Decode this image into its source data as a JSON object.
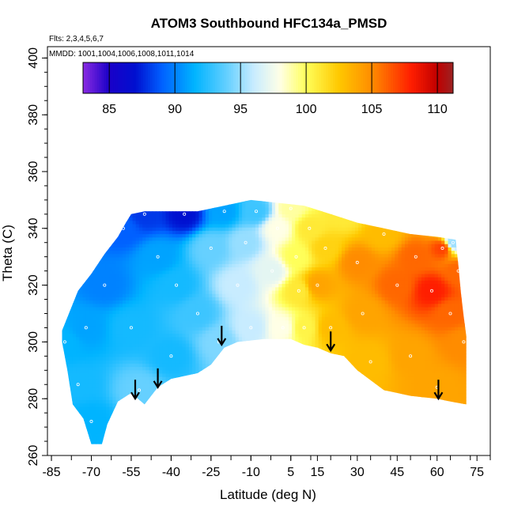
{
  "chart_data": {
    "type": "heatmap",
    "title": "ATOM3 Southbound HFC134a_PMSD",
    "notes": [
      "Flts: 2,3,4,5,6,7",
      "MMDD: 1001,1004,1006,1008,1011,1014"
    ],
    "xlabel": "Latitude (deg N)",
    "ylabel": "Theta (C)",
    "xlim": [
      -86.5,
      80
    ],
    "ylim": [
      260,
      404
    ],
    "x_ticks": [
      -85,
      -70,
      -55,
      -40,
      -25,
      -10,
      5,
      15,
      30,
      45,
      60,
      75
    ],
    "x_tick_labels": [
      "-85",
      "-70",
      "-55",
      "-40",
      "-25",
      "-10",
      "5",
      "15",
      "30",
      "45",
      "60",
      "75"
    ],
    "y_ticks": [
      260,
      280,
      300,
      320,
      340,
      360,
      380,
      400
    ],
    "y_tick_labels": [
      "260",
      "280",
      "300",
      "320",
      "340",
      "360",
      "380",
      "400"
    ],
    "colorbar": {
      "range": [
        83,
        111.2
      ],
      "ticks": [
        85,
        90,
        95,
        100,
        105,
        110
      ],
      "tick_labels": [
        "85",
        "90",
        "95",
        "100",
        "105",
        "110"
      ],
      "stops": [
        {
          "value": 83,
          "color": "#8a2be2"
        },
        {
          "value": 85,
          "color": "#1a00c8"
        },
        {
          "value": 87,
          "color": "#0010d0"
        },
        {
          "value": 89,
          "color": "#0060ff"
        },
        {
          "value": 91.5,
          "color": "#00b4ff"
        },
        {
          "value": 94,
          "color": "#66d0ff"
        },
        {
          "value": 96,
          "color": "#c8ecff"
        },
        {
          "value": 98,
          "color": "#ffffe6"
        },
        {
          "value": 100,
          "color": "#ffff5a"
        },
        {
          "value": 102.5,
          "color": "#ffc800"
        },
        {
          "value": 105,
          "color": "#ff8c00"
        },
        {
          "value": 108,
          "color": "#ff1e00"
        },
        {
          "value": 110,
          "color": "#c00000"
        },
        {
          "value": 111.2,
          "color": "#9b2222"
        }
      ]
    },
    "field": {
      "top_boundary": [
        [
          -81,
          304
        ],
        [
          -78,
          311
        ],
        [
          -75,
          318
        ],
        [
          -70,
          324
        ],
        [
          -65,
          331
        ],
        [
          -60,
          337
        ],
        [
          -57,
          342
        ],
        [
          -55,
          345
        ],
        [
          -50,
          346
        ],
        [
          -40,
          346
        ],
        [
          -30,
          346
        ],
        [
          -20,
          348
        ],
        [
          -10,
          350
        ],
        [
          0,
          349
        ],
        [
          10,
          348
        ],
        [
          20,
          345
        ],
        [
          30,
          342
        ],
        [
          40,
          340
        ],
        [
          50,
          338
        ],
        [
          60,
          337
        ],
        [
          67,
          336
        ],
        [
          68,
          327
        ],
        [
          69,
          317
        ],
        [
          70,
          309
        ],
        [
          71,
          302
        ]
      ],
      "bottom_boundary": [
        [
          -81,
          300
        ],
        [
          -79,
          290
        ],
        [
          -77,
          278
        ],
        [
          -73,
          273
        ],
        [
          -70,
          264
        ],
        [
          -66,
          264
        ],
        [
          -64,
          271
        ],
        [
          -60,
          279
        ],
        [
          -55,
          282
        ],
        [
          -50,
          278
        ],
        [
          -45,
          284
        ],
        [
          -40,
          287
        ],
        [
          -30,
          289
        ],
        [
          -25,
          292
        ],
        [
          -20,
          298
        ],
        [
          -15,
          300
        ],
        [
          -5,
          301
        ],
        [
          5,
          301
        ],
        [
          10,
          299
        ],
        [
          15,
          298
        ],
        [
          20,
          296
        ],
        [
          25,
          295
        ],
        [
          30,
          290
        ],
        [
          40,
          283
        ],
        [
          50,
          281
        ],
        [
          60,
          280
        ],
        [
          65,
          279
        ],
        [
          71,
          278
        ]
      ],
      "anchors": [
        [
          -80,
          300,
          91.5
        ],
        [
          -75,
          285,
          92
        ],
        [
          -72,
          305,
          91
        ],
        [
          -70,
          272,
          91.5
        ],
        [
          -65,
          320,
          90
        ],
        [
          -58,
          340,
          89
        ],
        [
          -55,
          305,
          92
        ],
        [
          -52,
          283,
          94
        ],
        [
          -50,
          345,
          88
        ],
        [
          -45,
          330,
          91
        ],
        [
          -40,
          295,
          92
        ],
        [
          -38,
          320,
          92
        ],
        [
          -35,
          345,
          87
        ],
        [
          -30,
          310,
          93
        ],
        [
          -25,
          333,
          94
        ],
        [
          -22,
          300,
          94.5
        ],
        [
          -20,
          346,
          91
        ],
        [
          -15,
          320,
          96
        ],
        [
          -12,
          335,
          95
        ],
        [
          -10,
          305,
          96
        ],
        [
          -8,
          346,
          93
        ],
        [
          -2,
          325,
          97
        ],
        [
          0,
          340,
          98
        ],
        [
          2,
          305,
          98
        ],
        [
          5,
          347,
          99
        ],
        [
          7,
          330,
          100
        ],
        [
          8,
          318,
          101
        ],
        [
          10,
          305,
          100.5
        ],
        [
          12,
          340,
          101
        ],
        [
          15,
          320,
          104
        ],
        [
          18,
          333,
          102
        ],
        [
          20,
          305,
          103
        ],
        [
          25,
          345,
          101
        ],
        [
          30,
          328,
          105
        ],
        [
          32,
          310,
          104
        ],
        [
          35,
          293,
          103
        ],
        [
          40,
          338,
          103
        ],
        [
          45,
          320,
          106
        ],
        [
          50,
          295,
          104
        ],
        [
          52,
          330,
          106
        ],
        [
          58,
          318,
          108
        ],
        [
          60,
          284,
          104
        ],
        [
          62,
          333,
          107
        ],
        [
          65,
          310,
          106
        ],
        [
          66,
          335,
          95
        ],
        [
          68,
          325,
          106
        ],
        [
          70,
          300,
          105
        ]
      ]
    },
    "arrows": [
      {
        "lat": -53.5,
        "theta": 280
      },
      {
        "lat": -45,
        "theta": 284
      },
      {
        "lat": -21,
        "theta": 299
      },
      {
        "lat": 20,
        "theta": 297
      },
      {
        "lat": 60.5,
        "theta": 280
      }
    ]
  }
}
